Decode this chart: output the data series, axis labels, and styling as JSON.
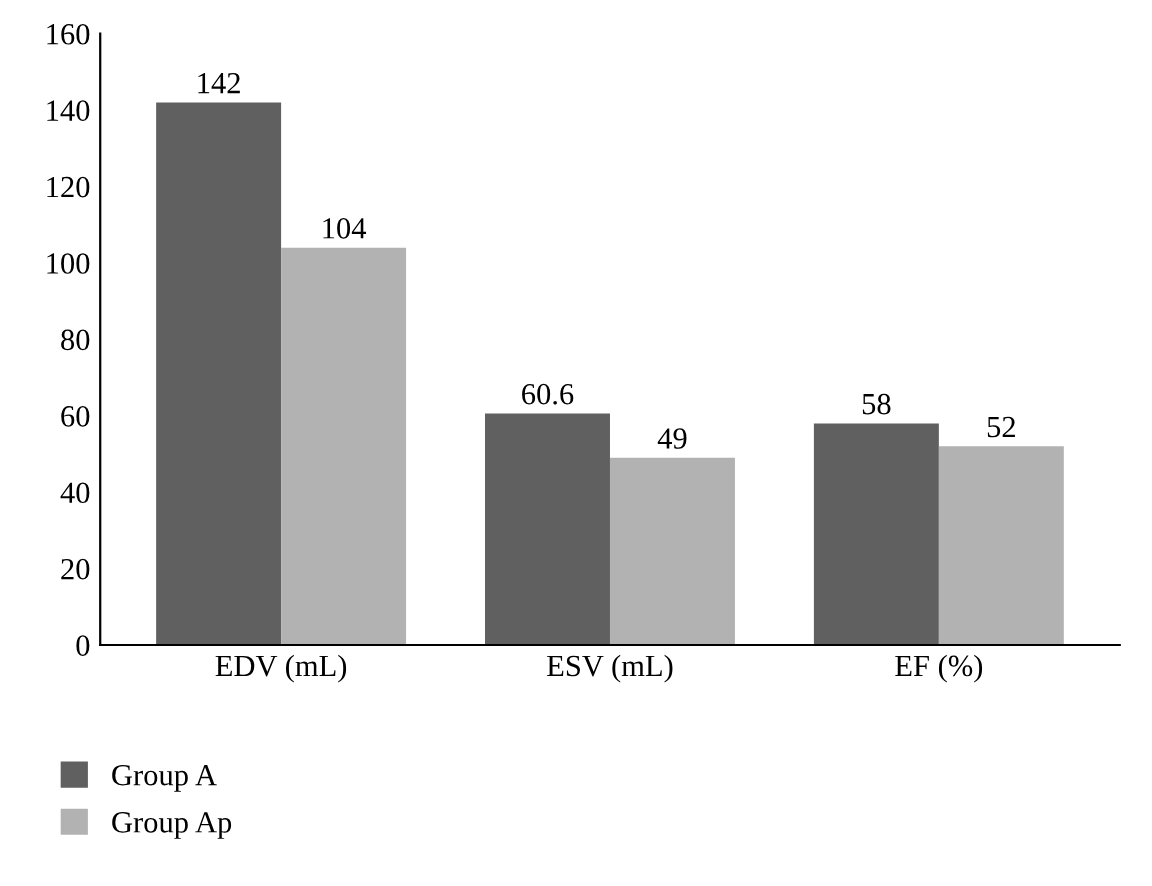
{
  "chart_data": {
    "type": "bar",
    "categories": [
      "EDV (mL)",
      "ESV (mL)",
      "EF (%)"
    ],
    "series": [
      {
        "name": "Group A",
        "color": "#606060",
        "values": [
          142,
          60.6,
          58
        ]
      },
      {
        "name": "Group Ap",
        "color": "#b2b2b2",
        "values": [
          104,
          49,
          52
        ]
      }
    ],
    "ylim": [
      0,
      160
    ],
    "yticks": [
      0,
      20,
      40,
      60,
      80,
      100,
      120,
      140,
      160
    ],
    "data_labels": true,
    "grid": false,
    "legend": "bottom"
  }
}
